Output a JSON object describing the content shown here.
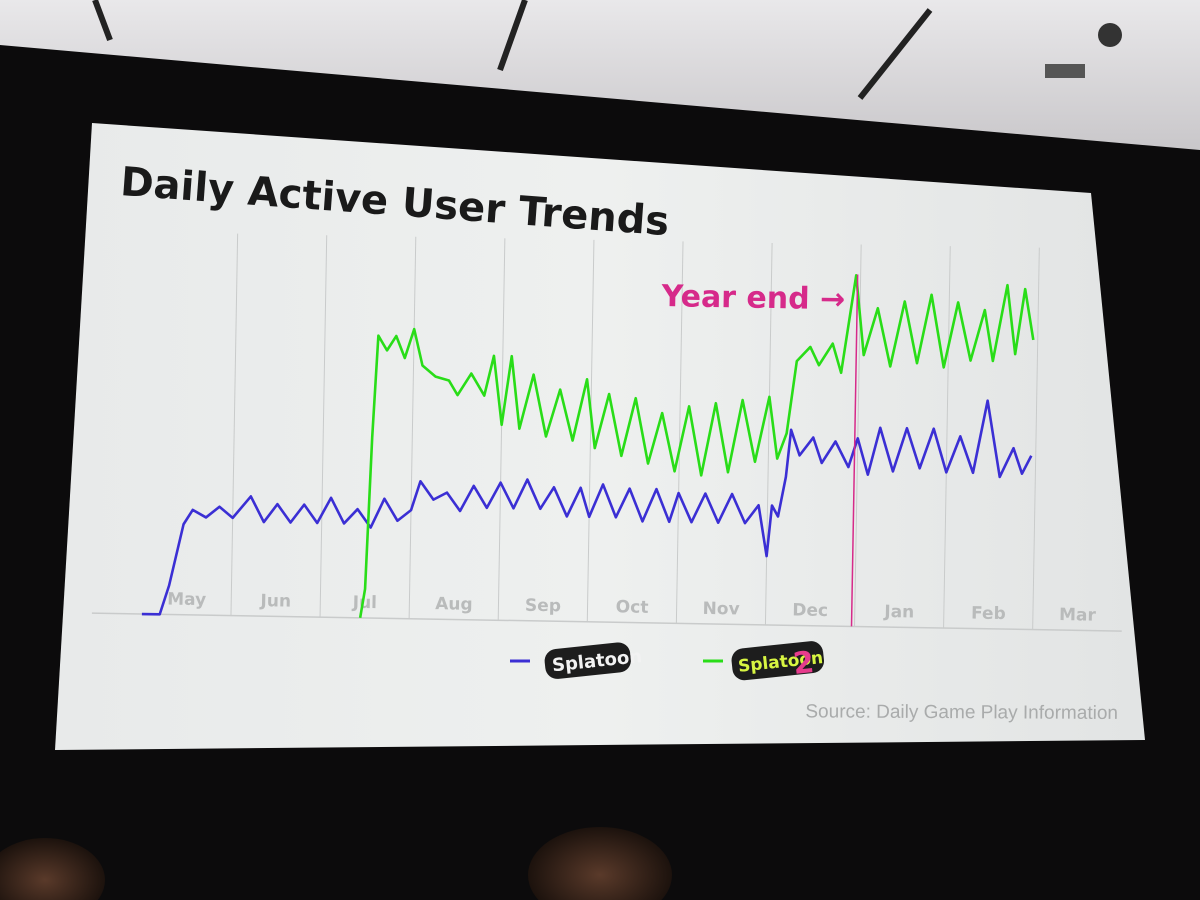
{
  "slide": {
    "title": "Daily Active User Trends",
    "source": "Source: Daily Game Play Information"
  },
  "chart_data": {
    "type": "line",
    "title": "Daily Active User Trends",
    "xlabel": "",
    "ylabel": "",
    "grid": true,
    "months": [
      "May",
      "Jun",
      "Jul",
      "Aug",
      "Sep",
      "Oct",
      "Nov",
      "Dec",
      "Jan",
      "Feb",
      "Mar"
    ],
    "ylim": [
      0,
      100
    ],
    "annotation": {
      "text": "Year end →",
      "month_index": 8,
      "color": "#d62a8a"
    },
    "legend_placement": "bottom-center",
    "series": [
      {
        "name": "Splatoon",
        "color": "#3b2fd4",
        "points": [
          [
            0.0,
            0
          ],
          [
            0.2,
            0
          ],
          [
            0.3,
            8
          ],
          [
            0.45,
            25
          ],
          [
            0.55,
            29
          ],
          [
            0.7,
            27
          ],
          [
            0.85,
            30
          ],
          [
            1.0,
            27
          ],
          [
            1.2,
            33
          ],
          [
            1.35,
            26
          ],
          [
            1.5,
            31
          ],
          [
            1.65,
            26
          ],
          [
            1.8,
            31
          ],
          [
            1.95,
            26
          ],
          [
            2.1,
            33
          ],
          [
            2.25,
            26
          ],
          [
            2.4,
            30
          ],
          [
            2.55,
            25
          ],
          [
            2.7,
            33
          ],
          [
            2.85,
            27
          ],
          [
            3.0,
            30
          ],
          [
            3.1,
            38
          ],
          [
            3.25,
            33
          ],
          [
            3.4,
            35
          ],
          [
            3.55,
            30
          ],
          [
            3.7,
            37
          ],
          [
            3.85,
            31
          ],
          [
            4.0,
            38
          ],
          [
            4.15,
            31
          ],
          [
            4.3,
            39
          ],
          [
            4.45,
            31
          ],
          [
            4.6,
            37
          ],
          [
            4.75,
            29
          ],
          [
            4.9,
            37
          ],
          [
            5.0,
            29
          ],
          [
            5.15,
            38
          ],
          [
            5.3,
            29
          ],
          [
            5.45,
            37
          ],
          [
            5.6,
            28
          ],
          [
            5.75,
            37
          ],
          [
            5.9,
            28
          ],
          [
            6.0,
            36
          ],
          [
            6.15,
            28
          ],
          [
            6.3,
            36
          ],
          [
            6.45,
            28
          ],
          [
            6.6,
            36
          ],
          [
            6.75,
            28
          ],
          [
            6.9,
            33
          ],
          [
            7.0,
            19
          ],
          [
            7.05,
            33
          ],
          [
            7.12,
            30
          ],
          [
            7.2,
            41
          ],
          [
            7.25,
            54
          ],
          [
            7.35,
            47
          ],
          [
            7.5,
            52
          ],
          [
            7.6,
            45
          ],
          [
            7.75,
            51
          ],
          [
            7.9,
            44
          ],
          [
            8.0,
            52
          ],
          [
            8.12,
            42
          ],
          [
            8.25,
            55
          ],
          [
            8.4,
            43
          ],
          [
            8.55,
            55
          ],
          [
            8.7,
            44
          ],
          [
            8.85,
            55
          ],
          [
            9.0,
            43
          ],
          [
            9.15,
            53
          ],
          [
            9.3,
            43
          ],
          [
            9.45,
            63
          ],
          [
            9.6,
            42
          ],
          [
            9.75,
            50
          ],
          [
            9.85,
            43
          ],
          [
            9.95,
            48
          ]
        ]
      },
      {
        "name": "Splatoon 2",
        "color": "#29dd18",
        "points": [
          [
            2.45,
            0
          ],
          [
            2.5,
            8
          ],
          [
            2.55,
            50
          ],
          [
            2.6,
            78
          ],
          [
            2.7,
            74
          ],
          [
            2.8,
            78
          ],
          [
            2.9,
            72
          ],
          [
            3.0,
            80
          ],
          [
            3.1,
            70
          ],
          [
            3.25,
            67
          ],
          [
            3.4,
            66
          ],
          [
            3.5,
            62
          ],
          [
            3.65,
            68
          ],
          [
            3.8,
            62
          ],
          [
            3.9,
            73
          ],
          [
            4.0,
            54
          ],
          [
            4.1,
            73
          ],
          [
            4.2,
            53
          ],
          [
            4.35,
            68
          ],
          [
            4.5,
            51
          ],
          [
            4.65,
            64
          ],
          [
            4.8,
            50
          ],
          [
            4.95,
            67
          ],
          [
            5.05,
            48
          ],
          [
            5.2,
            63
          ],
          [
            5.35,
            46
          ],
          [
            5.5,
            62
          ],
          [
            5.65,
            44
          ],
          [
            5.8,
            58
          ],
          [
            5.95,
            42
          ],
          [
            6.1,
            60
          ],
          [
            6.25,
            41
          ],
          [
            6.4,
            61
          ],
          [
            6.55,
            42
          ],
          [
            6.7,
            62
          ],
          [
            6.85,
            45
          ],
          [
            7.0,
            63
          ],
          [
            7.1,
            46
          ],
          [
            7.2,
            53
          ],
          [
            7.3,
            73
          ],
          [
            7.45,
            77
          ],
          [
            7.55,
            72
          ],
          [
            7.7,
            78
          ],
          [
            7.8,
            70
          ],
          [
            7.95,
            97
          ],
          [
            8.05,
            75
          ],
          [
            8.2,
            88
          ],
          [
            8.35,
            72
          ],
          [
            8.5,
            90
          ],
          [
            8.65,
            73
          ],
          [
            8.8,
            92
          ],
          [
            8.95,
            72
          ],
          [
            9.1,
            90
          ],
          [
            9.25,
            74
          ],
          [
            9.4,
            88
          ],
          [
            9.5,
            74
          ],
          [
            9.65,
            95
          ],
          [
            9.75,
            76
          ],
          [
            9.85,
            94
          ],
          [
            9.95,
            80
          ]
        ]
      }
    ]
  },
  "legend": [
    {
      "logo_text": "Splatoon",
      "color": "#3b2fd4"
    },
    {
      "logo_text": "Splatoon",
      "logo_suffix": "2",
      "color": "#29dd18"
    }
  ]
}
